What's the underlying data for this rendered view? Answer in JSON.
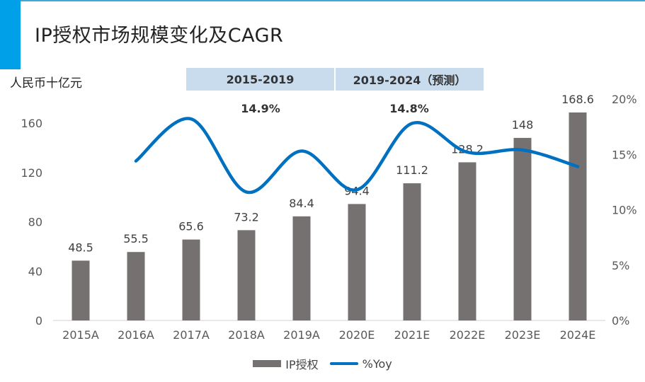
{
  "title": "IP授权市场规模变化及CAGR",
  "unit_label": "人民币十亿元",
  "periods": [
    {
      "label": "2015-2019",
      "cagr": "14.9%"
    },
    {
      "label": "2019-2024（预测）",
      "cagr": "14.8%"
    }
  ],
  "legend": {
    "bar": "IP授权",
    "line": "%Yoy"
  },
  "colors": {
    "bar": "#767171",
    "line": "#0070c0",
    "accent": "#00a0e9",
    "period_box": "#c8dcee"
  },
  "chart_data": {
    "type": "bar",
    "categories": [
      "2015A",
      "2016A",
      "2017A",
      "2018A",
      "2019A",
      "2020E",
      "2021E",
      "2022E",
      "2023E",
      "2024E"
    ],
    "series": [
      {
        "name": "IP授权",
        "type": "bar",
        "axis": "left",
        "values": [
          48.5,
          55.5,
          65.6,
          73.2,
          84.4,
          94.4,
          111.2,
          128.2,
          148,
          168.6
        ],
        "labels": [
          "48.5",
          "55.5",
          "65.6",
          "73.2",
          "84.4",
          "94.4",
          "111.2",
          "128.2",
          "148",
          "168.6"
        ]
      },
      {
        "name": "%Yoy",
        "type": "line",
        "axis": "right",
        "values": [
          null,
          14.4,
          18.2,
          11.6,
          15.3,
          11.8,
          17.8,
          15.2,
          15.4,
          13.9
        ]
      }
    ],
    "y_left": {
      "min": 0,
      "max": 160,
      "ticks": [
        "0",
        "40",
        "80",
        "120",
        "160"
      ],
      "tick_values": [
        0,
        40,
        80,
        120,
        160
      ]
    },
    "y_right": {
      "min": 0,
      "max": 20,
      "ticks": [
        "0%",
        "5%",
        "10%",
        "15%",
        "20%"
      ],
      "tick_values": [
        0,
        5,
        10,
        15,
        20
      ]
    },
    "legend_position": "bottom",
    "grid": false
  }
}
